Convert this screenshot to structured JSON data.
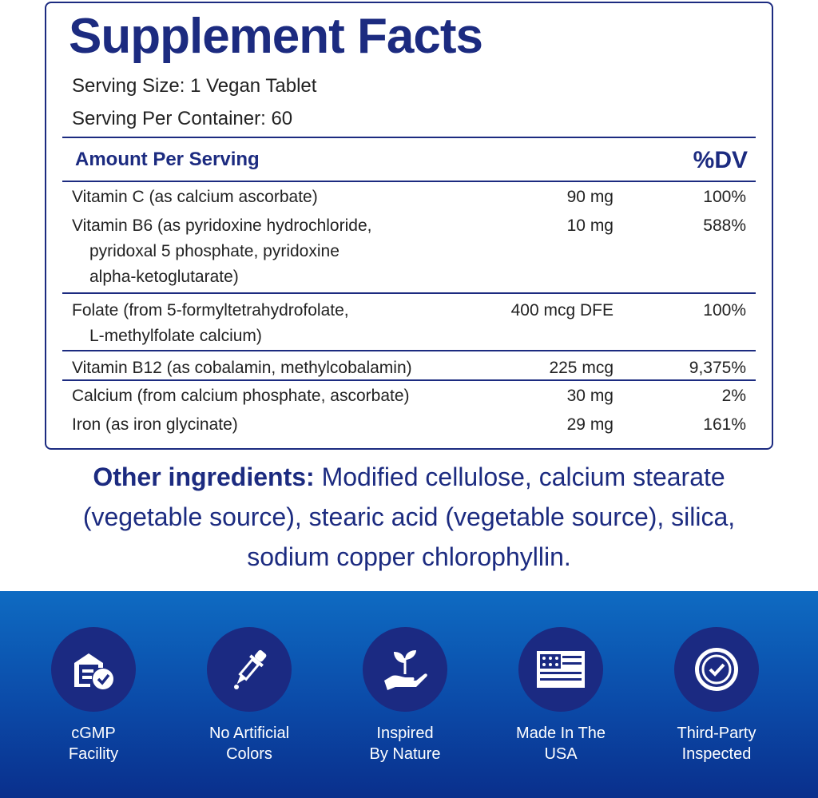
{
  "header": {
    "title": "Supplement Facts",
    "serving_size": "Serving Size: 1 Vegan Tablet",
    "servings": "Serving Per Container: 60"
  },
  "table": {
    "columns": [
      "Amount Per Serving",
      "%DV"
    ],
    "rows": [
      {
        "name": [
          "Vitamin C (as calcium ascorbate)"
        ],
        "amount": "90 mg",
        "dv": "100%"
      },
      {
        "name": [
          "Vitamin B6 (as pyridoxine hydrochloride,",
          "pyridoxal 5 phosphate, pyridoxine",
          "alpha-ketoglutarate)"
        ],
        "amount": "10 mg",
        "dv": "588%"
      },
      {
        "name": [
          "Folate (from 5-formyltetrahydrofolate,",
          "L-methylfolate calcium)"
        ],
        "amount": "400 mcg DFE",
        "dv": "100%"
      },
      {
        "name": [
          "Vitamin B12 (as cobalamin, methylcobalamin)"
        ],
        "amount": "225 mcg",
        "dv": "9,375%"
      },
      {
        "name": [
          "Calcium (from calcium phosphate, ascorbate)"
        ],
        "amount": "30 mg",
        "dv": "2%"
      },
      {
        "name": [
          "Iron (as iron glycinate)"
        ],
        "amount": "29 mg",
        "dv": "161%"
      }
    ]
  },
  "other_ingredients": {
    "label": "Other ingredients:",
    "text": "Modified cellulose, calcium stearate (vegetable source), stearic acid (vegetable source), silica, sodium copper chlorophyllin."
  },
  "badges": [
    {
      "label": [
        "cGMP",
        "Facility"
      ]
    },
    {
      "label": [
        "No Artificial",
        "Colors"
      ]
    },
    {
      "label": [
        "Inspired",
        "By Nature"
      ]
    },
    {
      "label": [
        "Made In The",
        "USA"
      ]
    },
    {
      "label": [
        "Third-Party",
        "Inspected"
      ]
    }
  ]
}
